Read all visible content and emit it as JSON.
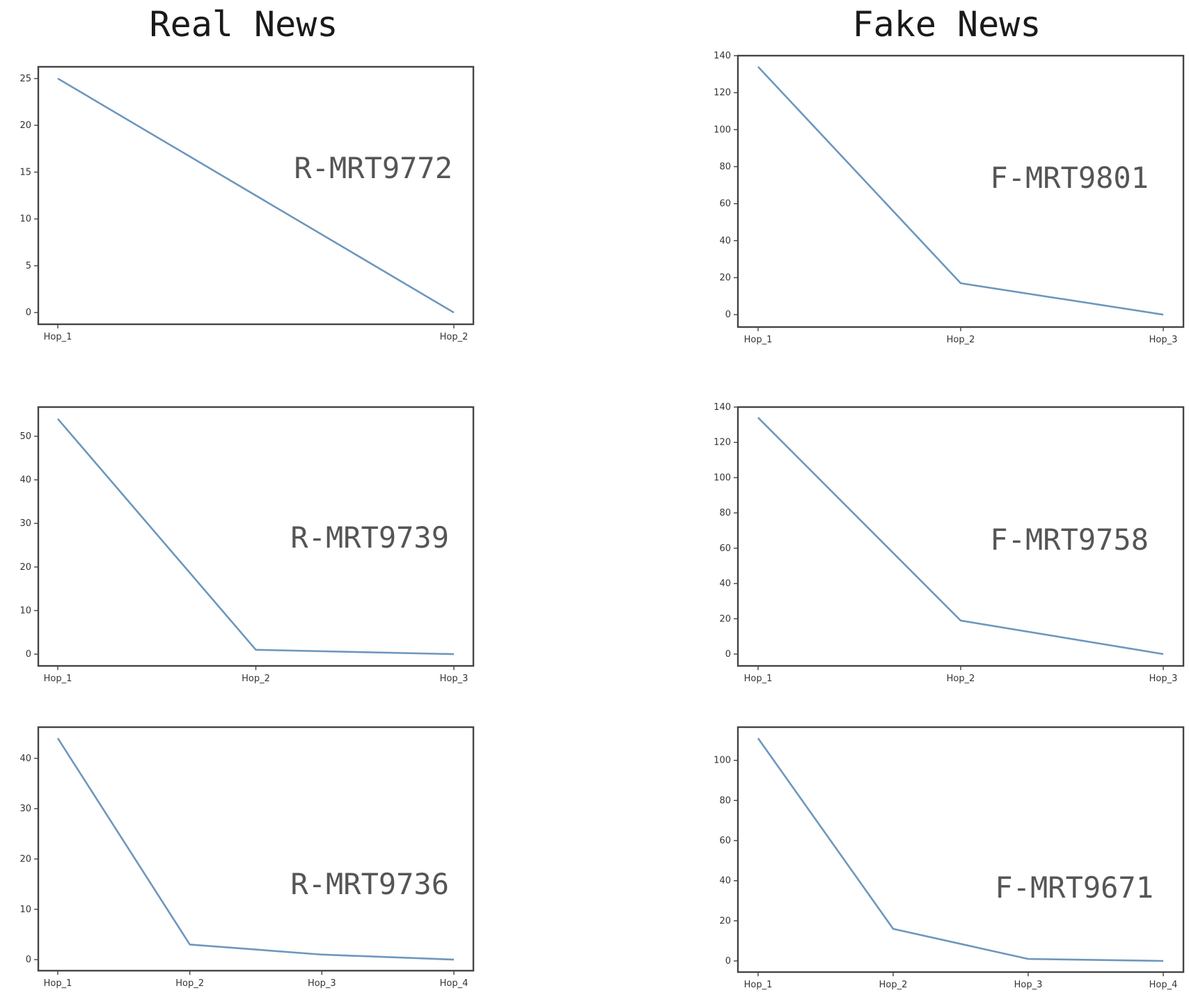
{
  "titles": {
    "real": "Real News",
    "fake": "Fake News"
  },
  "chart_data": [
    {
      "type": "line",
      "column": "real",
      "label": "R-MRT9772",
      "x": [
        "Hop_1",
        "Hop_2"
      ],
      "values": [
        25,
        0
      ],
      "yticks": [
        0,
        5,
        10,
        15,
        20,
        25
      ],
      "ylim": [
        -1.25,
        26.25
      ],
      "color": "#6d97bd"
    },
    {
      "type": "line",
      "column": "fake",
      "label": "F-MRT9801",
      "x": [
        "Hop_1",
        "Hop_2",
        "Hop_3"
      ],
      "values": [
        134,
        17,
        0
      ],
      "yticks": [
        0,
        20,
        40,
        60,
        80,
        100,
        120,
        140
      ],
      "ylim": [
        -6.7,
        140
      ],
      "color": "#6d97bd"
    },
    {
      "type": "line",
      "column": "real",
      "label": "R-MRT9739",
      "x": [
        "Hop_1",
        "Hop_2",
        "Hop_3"
      ],
      "values": [
        54,
        1,
        0
      ],
      "yticks": [
        0,
        10,
        20,
        30,
        40,
        50
      ],
      "ylim": [
        -2.7,
        56.7
      ],
      "color": "#6d97bd"
    },
    {
      "type": "line",
      "column": "fake",
      "label": "F-MRT9758",
      "x": [
        "Hop_1",
        "Hop_2",
        "Hop_3"
      ],
      "values": [
        134,
        19,
        0
      ],
      "yticks": [
        0,
        20,
        40,
        60,
        80,
        100,
        120,
        140
      ],
      "ylim": [
        -6.7,
        140
      ],
      "color": "#6d97bd"
    },
    {
      "type": "line",
      "column": "real",
      "label": "R-MRT9736",
      "x": [
        "Hop_1",
        "Hop_2",
        "Hop_3",
        "Hop_4"
      ],
      "values": [
        44,
        3,
        1,
        0
      ],
      "yticks": [
        0,
        10,
        20,
        30,
        40
      ],
      "ylim": [
        -2.2,
        46.2
      ],
      "color": "#6d97bd"
    },
    {
      "type": "line",
      "column": "fake",
      "label": "F-MRT9671",
      "x": [
        "Hop_1",
        "Hop_2",
        "Hop_3",
        "Hop_4"
      ],
      "values": [
        111,
        16,
        1,
        0
      ],
      "yticks": [
        0,
        20,
        40,
        60,
        80,
        100
      ],
      "ylim": [
        -5.55,
        116.55
      ],
      "color": "#6d97bd"
    }
  ]
}
